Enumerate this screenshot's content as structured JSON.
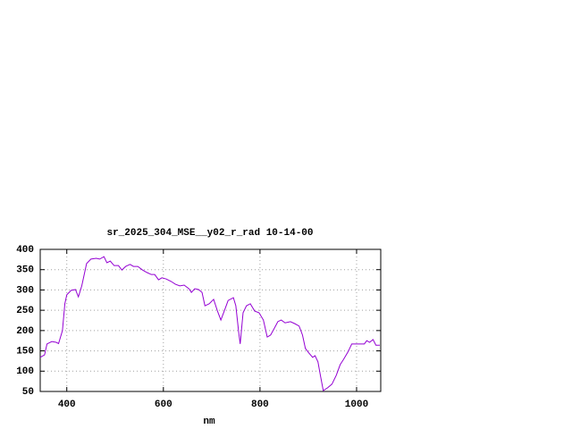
{
  "chart_data": {
    "type": "line",
    "title": "sr_2025_304_MSE__y02_r_rad 10-14-00",
    "x_label": "nm",
    "xlim": [
      345,
      1050
    ],
    "ylim": [
      50,
      400
    ],
    "xticks": [
      400,
      600,
      800,
      1000
    ],
    "yticks": [
      50,
      100,
      150,
      200,
      250,
      300,
      350,
      400
    ],
    "grid": true,
    "series": [
      {
        "color": "#9400d3",
        "x": [
          345,
          354,
          359,
          369,
          378,
          383,
          391,
          396,
          400,
          409,
          418,
          424,
          431,
          441,
          450,
          461,
          468,
          477,
          483,
          490,
          498,
          507,
          514,
          522,
          531,
          538,
          547,
          557,
          566,
          575,
          582,
          590,
          597,
          606,
          616,
          625,
          634,
          643,
          653,
          658,
          665,
          673,
          680,
          686,
          695,
          704,
          712,
          719,
          726,
          734,
          745,
          750,
          756,
          759,
          765,
          772,
          780,
          789,
          798,
          807,
          815,
          822,
          829,
          837,
          844,
          852,
          863,
          872,
          881,
          888,
          894,
          901,
          909,
          914,
          920,
          925,
          931,
          940,
          949,
          958,
          966,
          973,
          982,
          990,
          999,
          1008,
          1016,
          1021,
          1027,
          1034,
          1040,
          1048
        ],
        "values": [
          134,
          140,
          167,
          173,
          171,
          168,
          200,
          266,
          288,
          299,
          301,
          283,
          310,
          365,
          376,
          378,
          376,
          382,
          367,
          371,
          360,
          360,
          349,
          358,
          363,
          358,
          358,
          349,
          343,
          338,
          338,
          325,
          330,
          327,
          321,
          314,
          310,
          312,
          303,
          294,
          303,
          301,
          294,
          261,
          266,
          277,
          248,
          226,
          248,
          274,
          281,
          261,
          195,
          167,
          244,
          261,
          266,
          248,
          244,
          226,
          184,
          189,
          204,
          222,
          226,
          219,
          222,
          217,
          211,
          189,
          156,
          145,
          134,
          138,
          123,
          90,
          52,
          59,
          68,
          90,
          116,
          129,
          147,
          167,
          167,
          167,
          167,
          175,
          171,
          178,
          164,
          164
        ]
      }
    ]
  }
}
